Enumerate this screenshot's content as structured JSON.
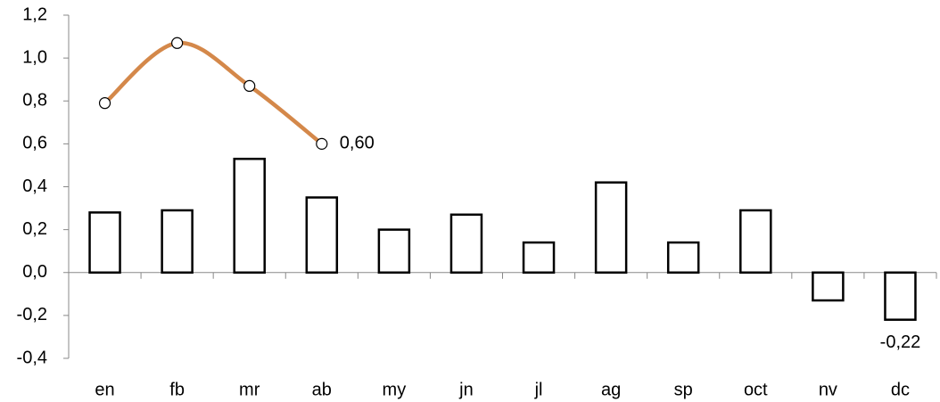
{
  "chart_data": {
    "type": "bar",
    "categories": [
      "en",
      "fb",
      "mr",
      "ab",
      "my",
      "jn",
      "jl",
      "ag",
      "sp",
      "oct",
      "nv",
      "dc"
    ],
    "series": [
      {
        "type": "bar",
        "color": "#000000",
        "values": [
          0.28,
          0.29,
          0.53,
          0.35,
          0.2,
          0.27,
          0.14,
          0.42,
          0.14,
          0.29,
          -0.13,
          -0.22
        ],
        "value_labels": [
          null,
          null,
          null,
          null,
          null,
          null,
          null,
          null,
          null,
          null,
          null,
          "-0,22"
        ]
      },
      {
        "type": "line",
        "color": "#d4884a",
        "values": [
          0.79,
          1.07,
          0.87,
          0.6,
          null,
          null,
          null,
          null,
          null,
          null,
          null,
          null
        ],
        "value_labels": [
          null,
          null,
          null,
          "0,60",
          null,
          null,
          null,
          null,
          null,
          null,
          null,
          null
        ]
      }
    ],
    "ylim": [
      -0.4,
      1.2
    ],
    "yticks": [
      {
        "value": -0.4,
        "label": "-0,4"
      },
      {
        "value": -0.2,
        "label": "-0,2"
      },
      {
        "value": 0,
        "label": "0,0"
      },
      {
        "value": 0.2,
        "label": "0,2"
      },
      {
        "value": 0.4,
        "label": "0,4"
      },
      {
        "value": 0.6,
        "label": "0,6"
      },
      {
        "value": 0.8,
        "label": "0,8"
      },
      {
        "value": 1.0,
        "label": "1,0"
      },
      {
        "value": 1.2,
        "label": "1,2"
      }
    ]
  }
}
